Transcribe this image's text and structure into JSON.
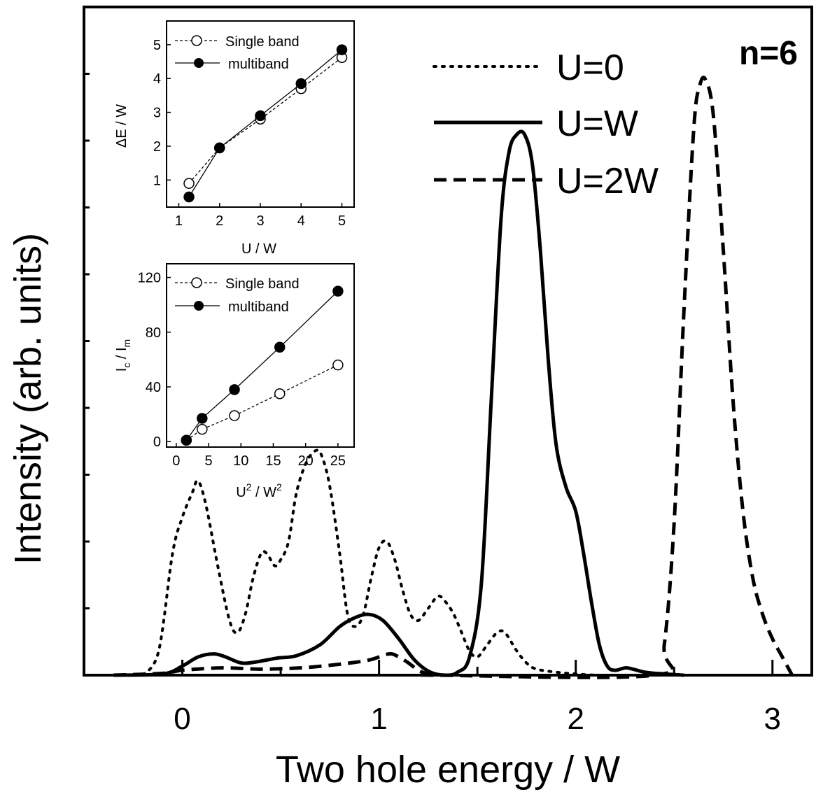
{
  "chart_data": [
    {
      "type": "line",
      "panel_label": "n=6",
      "xlabel": "Two hole energy / W",
      "ylabel": "Intensity (arb. units)",
      "xlim": [
        -0.5,
        3.2
      ],
      "ylim": [
        0,
        100
      ],
      "xticks": [
        0,
        1,
        2,
        3
      ],
      "legend_position": "top-right",
      "series": [
        {
          "name": "U=0",
          "style": "dotted",
          "x": [
            -0.2,
            -0.12,
            -0.05,
            0.0,
            0.05,
            0.08,
            0.12,
            0.18,
            0.24,
            0.28,
            0.32,
            0.36,
            0.4,
            0.43,
            0.47,
            0.5,
            0.54,
            0.58,
            0.63,
            0.68,
            0.71,
            0.75,
            0.8,
            0.84,
            0.88,
            0.92,
            0.96,
            1.0,
            1.04,
            1.08,
            1.12,
            1.16,
            1.2,
            1.25,
            1.3,
            1.34,
            1.38,
            1.42,
            1.46,
            1.5,
            1.55,
            1.6,
            1.64,
            1.7,
            1.75,
            1.8,
            1.9,
            2.0,
            2.1
          ],
          "y": [
            0,
            4,
            20,
            26,
            30,
            32,
            28,
            18,
            9,
            7,
            10,
            16,
            20,
            20,
            18,
            19,
            22,
            30,
            35,
            37,
            36,
            31,
            20,
            10,
            8,
            10,
            16,
            21,
            22,
            19,
            14,
            10,
            9,
            11,
            13,
            12,
            10,
            7,
            4,
            3,
            5,
            7,
            7,
            4,
            2,
            1,
            0.5,
            0.2,
            0
          ]
        },
        {
          "name": "U=W",
          "style": "solid",
          "x": [
            -0.35,
            -0.1,
            0.0,
            0.08,
            0.16,
            0.22,
            0.3,
            0.38,
            0.48,
            0.58,
            0.7,
            0.8,
            0.88,
            0.95,
            1.02,
            1.1,
            1.18,
            1.26,
            1.34,
            1.4,
            1.46,
            1.52,
            1.57,
            1.62,
            1.66,
            1.7,
            1.74,
            1.78,
            1.82,
            1.86,
            1.9,
            1.95,
            2.0,
            2.04,
            2.08,
            2.12,
            2.16,
            2.2,
            2.26,
            2.35,
            2.45,
            2.55
          ],
          "y": [
            0,
            0.2,
            1.5,
            3,
            3.5,
            3,
            2,
            2.2,
            2.8,
            3.2,
            5,
            8,
            9.5,
            10,
            9,
            6,
            2.5,
            0.5,
            0,
            0.5,
            3,
            15,
            45,
            75,
            86,
            89,
            89,
            84,
            70,
            52,
            38,
            31,
            27,
            20,
            12,
            5,
            1.5,
            0.8,
            1.2,
            0.5,
            0.2,
            0
          ]
        },
        {
          "name": "U=2W",
          "style": "dashed",
          "x": [
            -0.35,
            -0.1,
            0.0,
            0.2,
            0.4,
            0.6,
            0.8,
            0.95,
            1.05,
            1.1,
            1.15,
            1.2,
            1.25,
            1.3,
            2.4,
            2.45,
            2.5,
            2.55,
            2.6,
            2.63,
            2.66,
            2.7,
            2.75,
            2.8,
            2.85,
            2.9,
            2.95,
            3.0,
            3.05,
            3.1
          ],
          "y": [
            0,
            0.3,
            0.8,
            1.2,
            1.0,
            1.2,
            1.8,
            2.5,
            3.5,
            3.0,
            2.0,
            0.8,
            0.2,
            0,
            0,
            5,
            25,
            60,
            90,
            97,
            98,
            92,
            70,
            45,
            27,
            16,
            10,
            6,
            3,
            0
          ]
        }
      ]
    },
    {
      "type": "line",
      "xlabel": "U / W",
      "ylabel": "ΔE / W",
      "xlim": [
        0.7,
        5.3
      ],
      "ylim": [
        0.2,
        5.7
      ],
      "xticks": [
        1,
        2,
        3,
        4,
        5
      ],
      "yticks": [
        1,
        2,
        3,
        4,
        5
      ],
      "legend_position": "top-left",
      "series": [
        {
          "name": "Single band",
          "style": "dashed",
          "marker": "open-circle",
          "x": [
            1.25,
            2,
            3,
            4,
            5
          ],
          "y": [
            0.9,
            1.95,
            2.8,
            3.7,
            4.62
          ]
        },
        {
          "name": "multiband",
          "style": "solid",
          "marker": "filled-circle",
          "x": [
            1.25,
            2,
            3,
            4,
            5
          ],
          "y": [
            0.5,
            1.95,
            2.9,
            3.85,
            4.85
          ]
        }
      ]
    },
    {
      "type": "line",
      "xlabel_base": "U",
      "xlabel_base_sup": "2",
      "xlabel_sep": " / W",
      "xlabel_sup": "2",
      "ylabel_base": "I",
      "ylabel_sub1": "c",
      "ylabel_sep": " / I",
      "ylabel_sub2": "m",
      "xlim": [
        -1.5,
        27.5
      ],
      "ylim": [
        -4,
        130
      ],
      "xticks": [
        0,
        5,
        10,
        15,
        20,
        25
      ],
      "yticks": [
        0,
        40,
        80,
        120
      ],
      "legend_position": "top-left",
      "series": [
        {
          "name": "Single band",
          "style": "dashed",
          "marker": "open-circle",
          "x": [
            1.56,
            4,
            9,
            16,
            25
          ],
          "y": [
            1,
            9,
            19,
            35,
            56
          ]
        },
        {
          "name": "multiband",
          "style": "solid",
          "marker": "filled-circle",
          "x": [
            1.56,
            4,
            9,
            16,
            25
          ],
          "y": [
            1,
            17,
            38,
            69,
            110
          ]
        }
      ]
    }
  ]
}
